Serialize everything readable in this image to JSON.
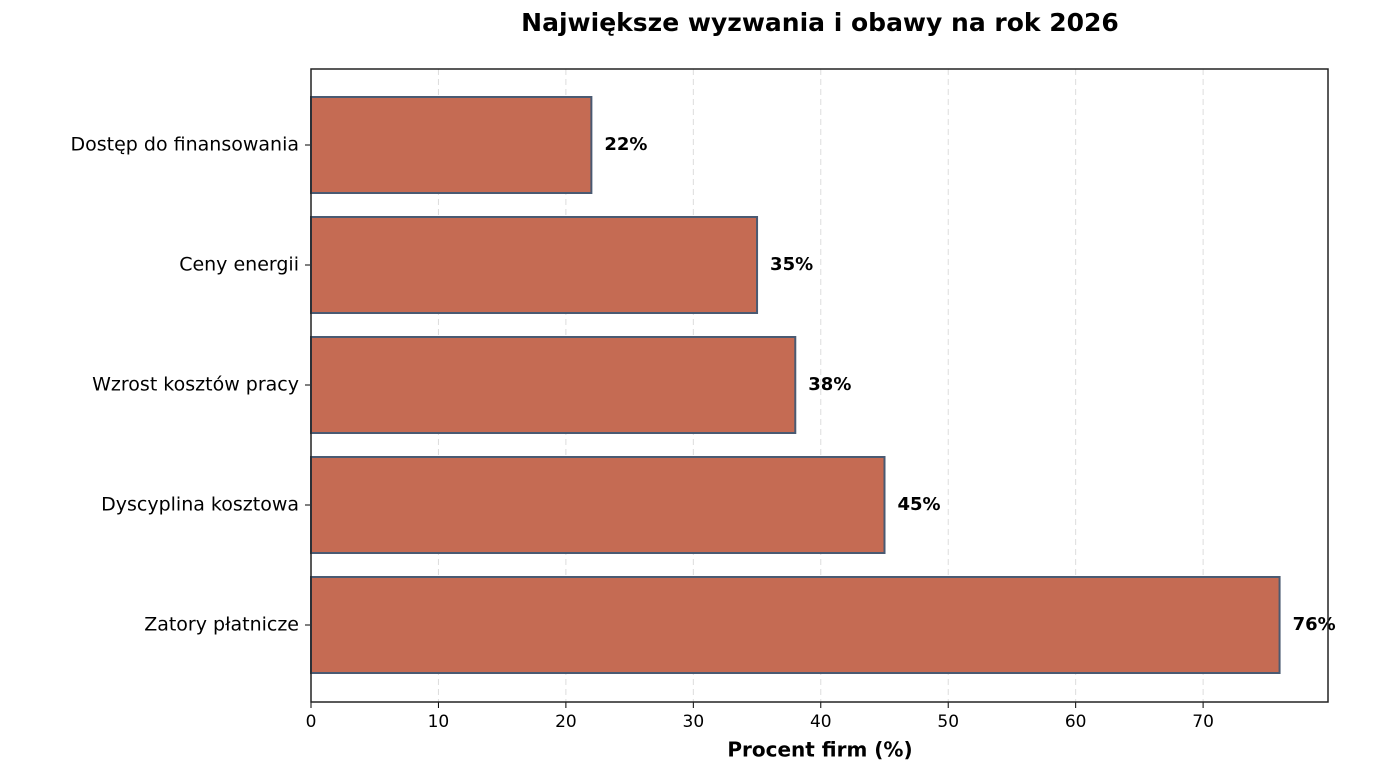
{
  "chart_data": {
    "type": "barh",
    "title": "Największe wyzwania i obawy na rok 2026",
    "x_label": "Procent firm (%)",
    "categories": [
      "Dostęp do finansowania",
      "Ceny energii",
      "Wzrost kosztów pracy",
      "Dyscyplina kosztowa",
      "Zatory płatnicze"
    ],
    "values": [
      22,
      35,
      38,
      45,
      76
    ],
    "value_labels": [
      "22%",
      "35%",
      "38%",
      "45%",
      "76%"
    ],
    "color": "#c56b53",
    "edge_color": "#4a5a72",
    "xlim": [
      0,
      79.8
    ],
    "xticks": [
      0,
      10,
      20,
      30,
      40,
      50,
      60,
      70
    ],
    "grid": true
  }
}
